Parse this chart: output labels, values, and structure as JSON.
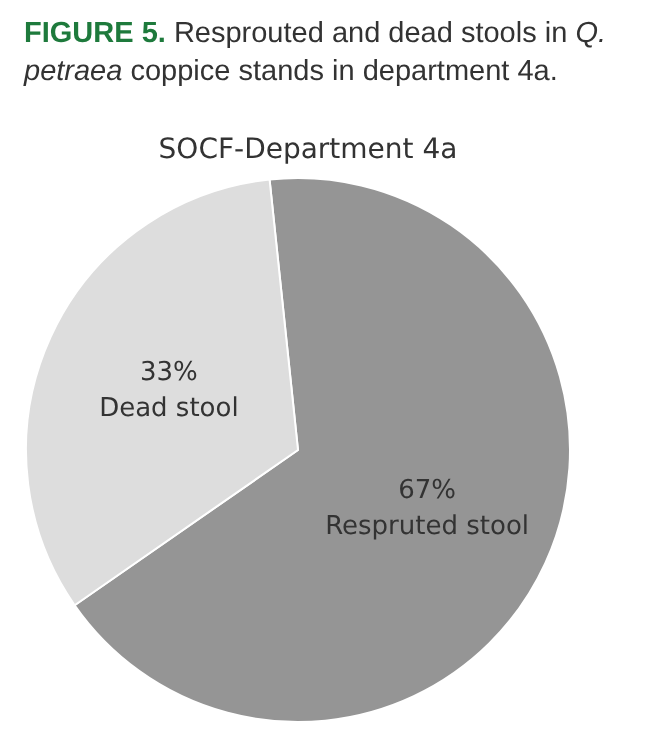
{
  "chart_data": {
    "type": "pie",
    "title": "FIGURE 5. Resprouted and dead stools in Q. petraea coppice stands in department 4a.",
    "subtitle": "SOCF-Department 4a",
    "categories": [
      "Respruted stool",
      "Dead stool"
    ],
    "values": [
      67,
      33
    ],
    "colors": [
      "#959595",
      "#dddddd"
    ],
    "value_labels": [
      "67%",
      "33%"
    ],
    "legend": false
  }
}
